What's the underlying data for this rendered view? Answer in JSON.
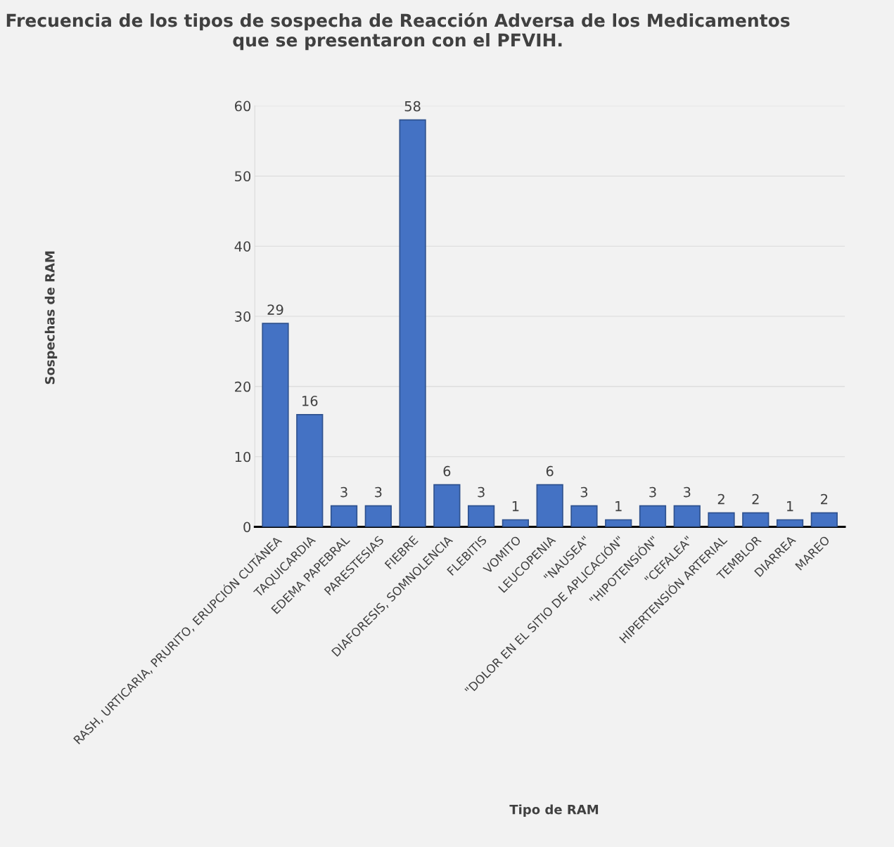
{
  "chart_data": {
    "type": "bar",
    "title": "Frecuencia de los tipos de sospecha de Reacción Adversa de los Medicamentos que se presentaron con el PFVIH.",
    "xlabel": "Tipo de RAM",
    "ylabel": "Sospechas de RAM",
    "categories": [
      "RASH, URTICARIA, PRURITO, ERUPCIÓN CUTÁNEA",
      "TAQUICARDIA",
      "EDEMA PAPEBRAL",
      "PARESTESIAS",
      "FIEBRE",
      "DIAFORESIS, SOMNOLENCIA",
      "FLEBITIS",
      "VOMITO",
      "LEUCOPENIA",
      "\"NAUSEA\"",
      "\"DOLOR EN EL SITIO DE APLICACIÓN\"",
      "\"HIPOTENSIÓN\"",
      "\"CEFALEA\"",
      "HIPERTENSIÓN ARTERIAL",
      "TEMBLOR",
      "DIARREA",
      "MAREO"
    ],
    "values": [
      29,
      16,
      3,
      3,
      58,
      6,
      3,
      1,
      6,
      3,
      1,
      3,
      3,
      2,
      2,
      1,
      2
    ],
    "color": "#4472c4",
    "ylim": [
      0,
      60
    ],
    "yticks": [
      0,
      10,
      20,
      30,
      40,
      50,
      60
    ],
    "grid": "y",
    "data_labels": true
  }
}
